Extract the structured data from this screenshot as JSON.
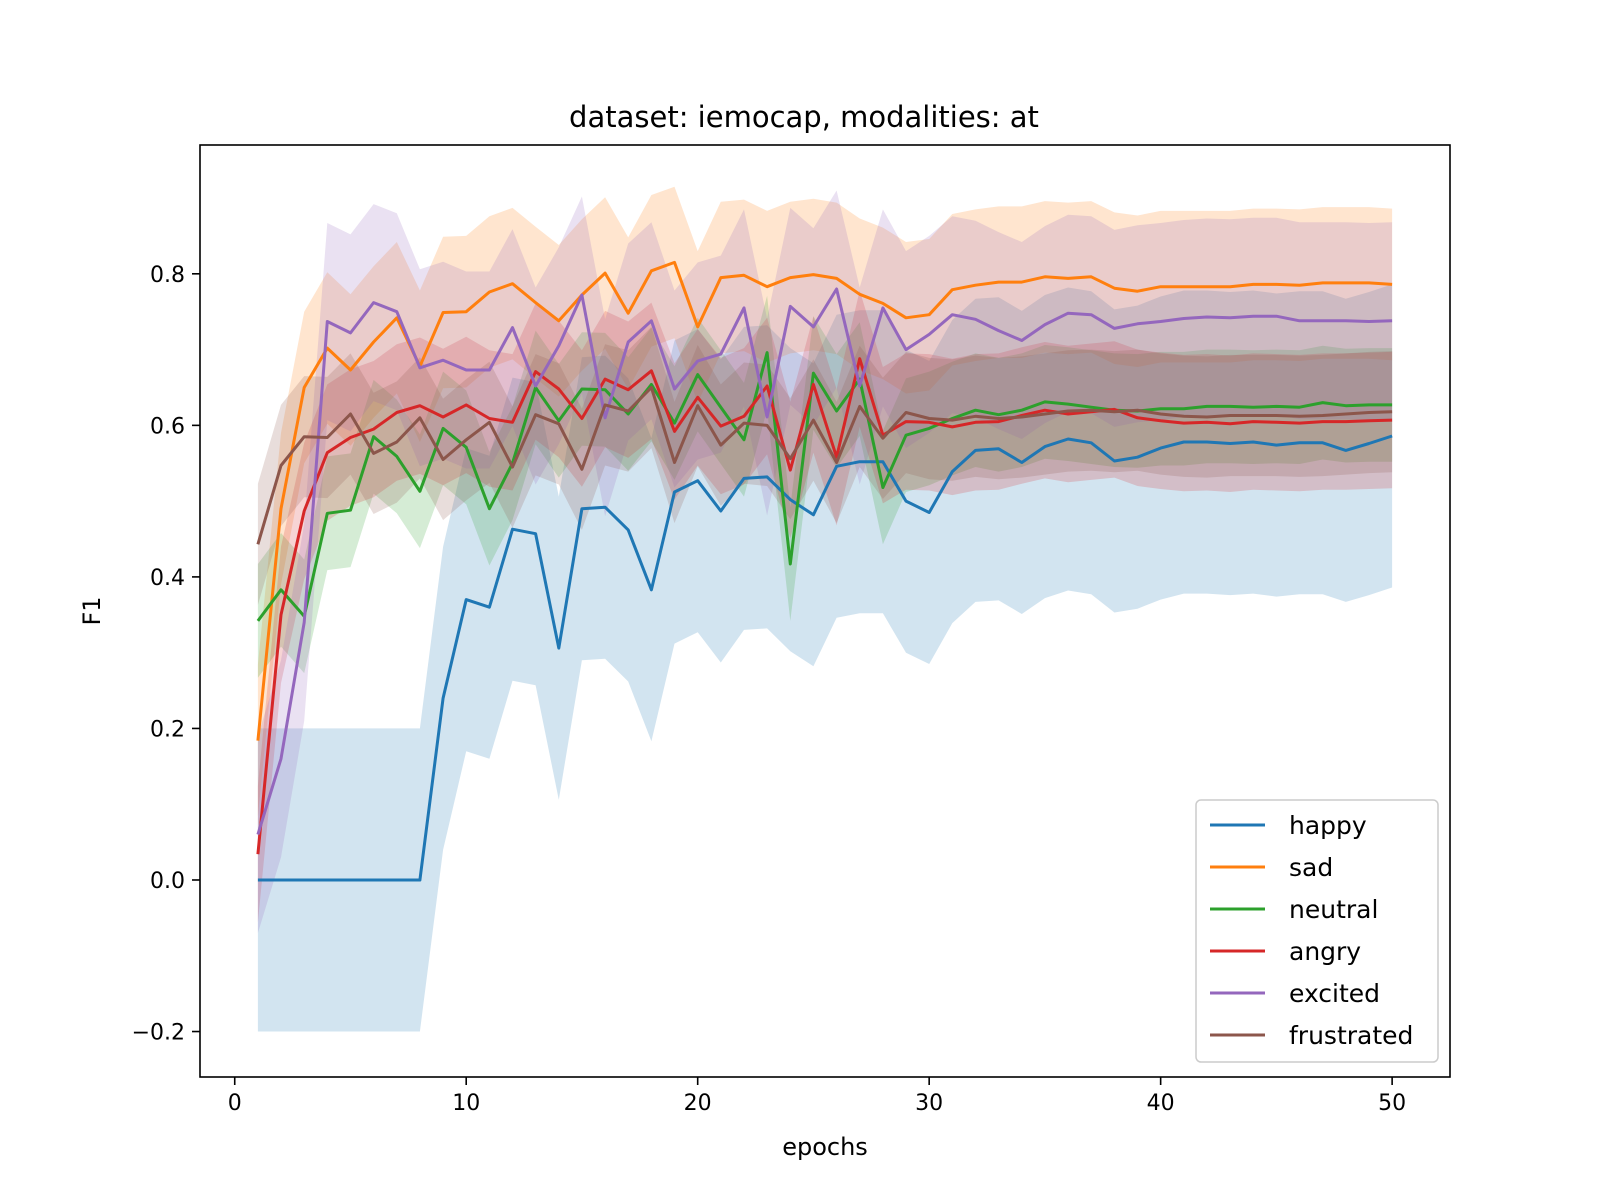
{
  "chart_data": {
    "type": "line",
    "title": "dataset: iemocap, modalities: at",
    "xlabel": "epochs",
    "ylabel": "F1",
    "xlim": [
      -1.5,
      52.5
    ],
    "ylim": [
      -0.26,
      0.97
    ],
    "xticks": [
      0,
      10,
      20,
      30,
      40,
      50
    ],
    "yticks": [
      -0.2,
      0.0,
      0.2,
      0.4,
      0.6,
      0.8
    ],
    "ytick_labels": [
      "−0.2",
      "0.0",
      "0.2",
      "0.4",
      "0.6",
      "0.8"
    ],
    "grid": false,
    "legend_position": "lower-right",
    "x": [
      1,
      2,
      3,
      4,
      5,
      6,
      7,
      8,
      9,
      10,
      11,
      12,
      13,
      14,
      15,
      16,
      17,
      18,
      19,
      20,
      21,
      22,
      23,
      24,
      25,
      26,
      27,
      28,
      29,
      30,
      31,
      32,
      33,
      34,
      35,
      36,
      37,
      38,
      39,
      40,
      41,
      42,
      43,
      44,
      45,
      46,
      47,
      48,
      49,
      50
    ],
    "series": [
      {
        "name": "happy",
        "color": "#1f77b4",
        "values": [
          0.0,
          0.0,
          0.0,
          0.0,
          0.0,
          0.0,
          0.0,
          0.0,
          0.24,
          0.37,
          0.36,
          0.463,
          0.457,
          0.306,
          0.49,
          0.492,
          0.462,
          0.383,
          0.512,
          0.527,
          0.487,
          0.53,
          0.532,
          0.502,
          0.482,
          0.546,
          0.552,
          0.552,
          0.5,
          0.485,
          0.539,
          0.567,
          0.569,
          0.551,
          0.572,
          0.582,
          0.577,
          0.553,
          0.558,
          0.57,
          0.578,
          0.578,
          0.576,
          0.578,
          0.574,
          0.577,
          0.577,
          0.567,
          0.576,
          0.586
        ],
        "band": [
          0.2,
          0.2,
          0.2,
          0.2,
          0.2,
          0.2,
          0.2,
          0.2,
          0.2,
          0.2,
          0.2,
          0.2,
          0.2,
          0.2,
          0.2,
          0.2,
          0.2,
          0.2,
          0.2,
          0.2,
          0.2,
          0.2,
          0.2,
          0.2,
          0.2,
          0.2,
          0.2,
          0.2,
          0.2,
          0.2,
          0.2,
          0.2,
          0.2,
          0.2,
          0.2,
          0.2,
          0.2,
          0.2,
          0.2,
          0.2,
          0.2,
          0.2,
          0.2,
          0.2,
          0.2,
          0.2,
          0.2,
          0.2,
          0.2,
          0.2
        ]
      },
      {
        "name": "sad",
        "color": "#ff7f0e",
        "values": [
          0.184,
          0.49,
          0.65,
          0.702,
          0.673,
          0.71,
          0.742,
          0.678,
          0.749,
          0.75,
          0.776,
          0.787,
          0.762,
          0.738,
          0.772,
          0.801,
          0.748,
          0.804,
          0.815,
          0.73,
          0.795,
          0.798,
          0.783,
          0.795,
          0.799,
          0.794,
          0.773,
          0.761,
          0.742,
          0.746,
          0.779,
          0.785,
          0.789,
          0.789,
          0.796,
          0.794,
          0.796,
          0.781,
          0.777,
          0.783,
          0.783,
          0.783,
          0.783,
          0.786,
          0.786,
          0.785,
          0.788,
          0.788,
          0.788,
          0.786
        ],
        "band": [
          0.1,
          0.1,
          0.1,
          0.1,
          0.1,
          0.1,
          0.1,
          0.1,
          0.1,
          0.1,
          0.1,
          0.1,
          0.1,
          0.1,
          0.1,
          0.1,
          0.1,
          0.1,
          0.1,
          0.1,
          0.1,
          0.1,
          0.1,
          0.1,
          0.1,
          0.1,
          0.1,
          0.1,
          0.1,
          0.1,
          0.1,
          0.1,
          0.1,
          0.1,
          0.1,
          0.1,
          0.1,
          0.1,
          0.1,
          0.1,
          0.1,
          0.1,
          0.1,
          0.1,
          0.1,
          0.1,
          0.1,
          0.1,
          0.1,
          0.1
        ]
      },
      {
        "name": "neutral",
        "color": "#2ca02c",
        "values": [
          0.342,
          0.383,
          0.348,
          0.484,
          0.488,
          0.585,
          0.559,
          0.513,
          0.596,
          0.571,
          0.49,
          0.55,
          0.65,
          0.606,
          0.648,
          0.647,
          0.615,
          0.654,
          0.603,
          0.667,
          0.624,
          0.581,
          0.696,
          0.417,
          0.669,
          0.619,
          0.661,
          0.518,
          0.587,
          0.596,
          0.609,
          0.62,
          0.614,
          0.62,
          0.631,
          0.628,
          0.624,
          0.62,
          0.619,
          0.622,
          0.622,
          0.625,
          0.625,
          0.624,
          0.625,
          0.624,
          0.63,
          0.626,
          0.627,
          0.627
        ],
        "band": [
          0.075,
          0.075,
          0.075,
          0.075,
          0.075,
          0.075,
          0.075,
          0.075,
          0.075,
          0.075,
          0.075,
          0.075,
          0.075,
          0.075,
          0.075,
          0.075,
          0.075,
          0.075,
          0.075,
          0.075,
          0.075,
          0.075,
          0.075,
          0.075,
          0.075,
          0.075,
          0.075,
          0.075,
          0.075,
          0.075,
          0.075,
          0.075,
          0.075,
          0.075,
          0.075,
          0.075,
          0.075,
          0.075,
          0.075,
          0.075,
          0.075,
          0.075,
          0.075,
          0.075,
          0.075,
          0.075,
          0.075,
          0.075,
          0.075,
          0.075
        ]
      },
      {
        "name": "angry",
        "color": "#d62728",
        "values": [
          0.034,
          0.35,
          0.487,
          0.564,
          0.584,
          0.595,
          0.617,
          0.626,
          0.611,
          0.627,
          0.609,
          0.604,
          0.671,
          0.648,
          0.609,
          0.661,
          0.647,
          0.672,
          0.592,
          0.637,
          0.599,
          0.612,
          0.652,
          0.541,
          0.654,
          0.558,
          0.688,
          0.587,
          0.605,
          0.604,
          0.598,
          0.604,
          0.605,
          0.613,
          0.62,
          0.615,
          0.618,
          0.621,
          0.61,
          0.606,
          0.603,
          0.604,
          0.602,
          0.605,
          0.604,
          0.603,
          0.605,
          0.605,
          0.606,
          0.607
        ],
        "band": [
          0.09,
          0.09,
          0.09,
          0.09,
          0.09,
          0.09,
          0.09,
          0.09,
          0.09,
          0.09,
          0.09,
          0.09,
          0.09,
          0.09,
          0.09,
          0.09,
          0.09,
          0.09,
          0.09,
          0.09,
          0.09,
          0.09,
          0.09,
          0.09,
          0.09,
          0.09,
          0.09,
          0.09,
          0.09,
          0.09,
          0.09,
          0.09,
          0.09,
          0.09,
          0.09,
          0.09,
          0.09,
          0.09,
          0.09,
          0.09,
          0.09,
          0.09,
          0.09,
          0.09,
          0.09,
          0.09,
          0.09,
          0.09,
          0.09,
          0.09
        ]
      },
      {
        "name": "excited",
        "color": "#9467bd",
        "values": [
          0.06,
          0.16,
          0.34,
          0.737,
          0.722,
          0.762,
          0.75,
          0.676,
          0.686,
          0.673,
          0.673,
          0.729,
          0.652,
          0.705,
          0.772,
          0.61,
          0.71,
          0.738,
          0.648,
          0.685,
          0.694,
          0.755,
          0.611,
          0.757,
          0.73,
          0.78,
          0.652,
          0.755,
          0.7,
          0.72,
          0.746,
          0.74,
          0.725,
          0.712,
          0.733,
          0.748,
          0.746,
          0.728,
          0.734,
          0.737,
          0.741,
          0.743,
          0.742,
          0.744,
          0.744,
          0.738,
          0.738,
          0.738,
          0.737,
          0.738
        ],
        "band": [
          0.13,
          0.13,
          0.13,
          0.13,
          0.13,
          0.13,
          0.13,
          0.13,
          0.13,
          0.13,
          0.13,
          0.13,
          0.13,
          0.13,
          0.13,
          0.13,
          0.13,
          0.13,
          0.13,
          0.13,
          0.13,
          0.13,
          0.13,
          0.13,
          0.13,
          0.13,
          0.13,
          0.13,
          0.13,
          0.13,
          0.13,
          0.13,
          0.13,
          0.13,
          0.13,
          0.13,
          0.13,
          0.13,
          0.13,
          0.13,
          0.13,
          0.13,
          0.13,
          0.13,
          0.13,
          0.13,
          0.13,
          0.13,
          0.13,
          0.13
        ]
      },
      {
        "name": "frustrated",
        "color": "#8c564b",
        "values": [
          0.443,
          0.547,
          0.585,
          0.584,
          0.615,
          0.563,
          0.578,
          0.61,
          0.555,
          0.581,
          0.604,
          0.545,
          0.614,
          0.602,
          0.542,
          0.627,
          0.619,
          0.65,
          0.551,
          0.626,
          0.574,
          0.603,
          0.6,
          0.556,
          0.607,
          0.551,
          0.625,
          0.583,
          0.617,
          0.609,
          0.607,
          0.612,
          0.609,
          0.611,
          0.615,
          0.619,
          0.62,
          0.618,
          0.62,
          0.615,
          0.612,
          0.611,
          0.613,
          0.613,
          0.613,
          0.612,
          0.613,
          0.615,
          0.617,
          0.618
        ],
        "band": [
          0.08,
          0.08,
          0.08,
          0.08,
          0.08,
          0.08,
          0.08,
          0.08,
          0.08,
          0.08,
          0.08,
          0.08,
          0.08,
          0.08,
          0.08,
          0.08,
          0.08,
          0.08,
          0.08,
          0.08,
          0.08,
          0.08,
          0.08,
          0.08,
          0.08,
          0.08,
          0.08,
          0.08,
          0.08,
          0.08,
          0.08,
          0.08,
          0.08,
          0.08,
          0.08,
          0.08,
          0.08,
          0.08,
          0.08,
          0.08,
          0.08,
          0.08,
          0.08,
          0.08,
          0.08,
          0.08,
          0.08,
          0.08,
          0.08,
          0.08
        ]
      }
    ]
  }
}
